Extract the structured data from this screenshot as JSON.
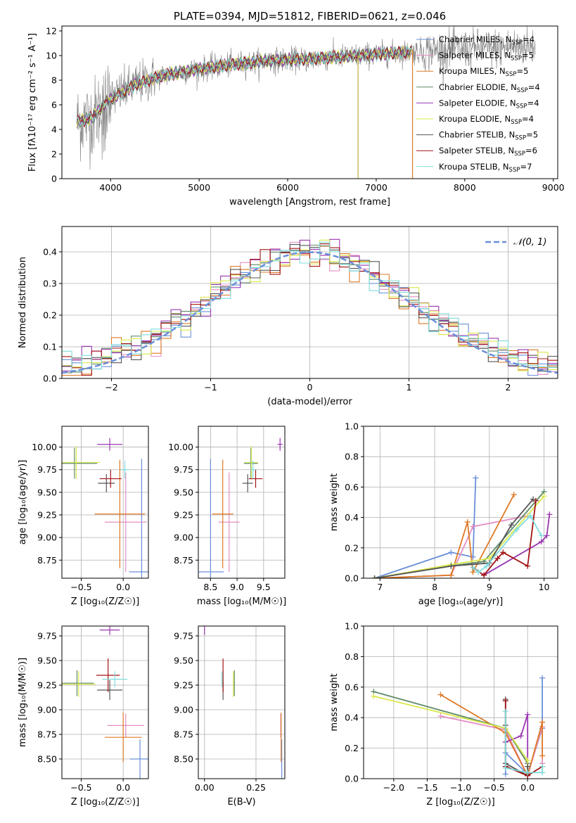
{
  "colors": {
    "Chabrier MILES": "#6a8fd9",
    "Salpeter MILES": "#e48fc3",
    "Kroupa MILES": "#de7a26",
    "Chabrier ELODIE": "#5e8a68",
    "Salpeter ELODIE": "#9a36b0",
    "Kroupa ELODIE": "#d9e84c",
    "Chabrier STELIB": "#555555",
    "Salpeter STELIB": "#a31414",
    "Kroupa STELIB": "#7fdcdc",
    "normal_curve": "#6a8fd9",
    "observed_spectrum": "#808080"
  },
  "chart_data": [
    {
      "id": "spectrum",
      "type": "line",
      "title": "PLATE=0394, MJD=51812, FIBERID=0621, z=0.046",
      "xlabel": "wavelength [Angstrom, rest frame]",
      "ylabel": "Flux [fλ10⁻¹⁷ erg cm⁻² s⁻¹ A⁻¹]",
      "xlim": [
        3450,
        9050
      ],
      "ylim": [
        0,
        12.4
      ],
      "xticks": [
        4000,
        5000,
        6000,
        7000,
        8000,
        9000
      ],
      "yticks": [
        0,
        2,
        4,
        6,
        8,
        10,
        12
      ],
      "grid": false,
      "legend_position": "right",
      "legend": [
        {
          "label": "Chabrier MILES, N",
          "sub": "SSP",
          "eq": "=4"
        },
        {
          "label": "Salpeter MILES, N",
          "sub": "SSP",
          "eq": "=5"
        },
        {
          "label": "Kroupa MILES, N",
          "sub": "SSP",
          "eq": "=5"
        },
        {
          "label": "Chabrier ELODIE, N",
          "sub": "SSP",
          "eq": "=4"
        },
        {
          "label": "Salpeter ELODIE, N",
          "sub": "SSP",
          "eq": "=4"
        },
        {
          "label": "Kroupa ELODIE, N",
          "sub": "SSP",
          "eq": "=4"
        },
        {
          "label": "Chabrier STELIB, N",
          "sub": "SSP",
          "eq": "=5"
        },
        {
          "label": "Salpeter STELIB, N",
          "sub": "SSP",
          "eq": "=6"
        },
        {
          "label": "Kroupa STELIB, N",
          "sub": "SSP",
          "eq": "=7"
        }
      ],
      "continuum": {
        "x": [
          3620,
          3800,
          3950,
          4100,
          4300,
          4600,
          5000,
          5400,
          5800,
          6200,
          6600,
          7000,
          7400,
          7800,
          8200,
          8600,
          8800
        ],
        "y": [
          4.6,
          5.0,
          6.2,
          6.9,
          7.7,
          8.4,
          8.9,
          9.3,
          9.6,
          9.7,
          9.9,
          10.1,
          10.3,
          10.45,
          10.55,
          10.7,
          10.8
        ]
      }
    },
    {
      "id": "residuals",
      "type": "line",
      "xlabel": "(data-model)/error",
      "ylabel": "Normed distribution",
      "xlim": [
        -2.5,
        2.5
      ],
      "ylim": [
        0,
        0.48
      ],
      "xticks": [
        -2,
        -1,
        0,
        1,
        2
      ],
      "yticks": [
        0.0,
        0.1,
        0.2,
        0.3,
        0.4
      ],
      "grid": true,
      "legend_position": "top-right",
      "legend": "𝒩(0, 1)",
      "bin_width": 0.1
    },
    {
      "id": "age-vs-Z",
      "type": "scatter",
      "xlabel": "Z [log₁₀(Z/Z☉)]",
      "ylabel": "age  [log₁₀(age/yr)]",
      "xlim": [
        -0.73,
        0.3
      ],
      "ylim": [
        8.55,
        10.23
      ],
      "xticks": [
        -0.5,
        0.0
      ],
      "yticks": [
        8.75,
        9.0,
        9.25,
        9.5,
        9.75,
        10.0
      ],
      "grid": true,
      "points": [
        {
          "model": "Chabrier MILES",
          "x": 0.22,
          "xerr": 0.15,
          "y": 8.62,
          "yerr": 1.25
        },
        {
          "model": "Salpeter MILES",
          "x": 0.03,
          "xerr": 0.25,
          "y": 9.17,
          "yerr": 0.55
        },
        {
          "model": "Kroupa MILES",
          "x": -0.04,
          "xerr": 0.3,
          "y": 9.26,
          "yerr": 0.6
        },
        {
          "model": "Chabrier ELODIE",
          "x": -0.58,
          "xerr": 0.27,
          "y": 9.82,
          "yerr": 0.17
        },
        {
          "model": "Salpeter ELODIE",
          "x": -0.16,
          "xerr": 0.15,
          "y": 10.03,
          "yerr": 0.07
        },
        {
          "model": "Kroupa ELODIE",
          "x": -0.56,
          "xerr": 0.28,
          "y": 9.83,
          "yerr": 0.18
        },
        {
          "model": "Chabrier STELIB",
          "x": -0.2,
          "xerr": 0.1,
          "y": 9.6,
          "yerr": 0.1
        },
        {
          "model": "Salpeter STELIB",
          "x": -0.15,
          "xerr": 0.13,
          "y": 9.65,
          "yerr": 0.1
        },
        {
          "model": "Kroupa STELIB",
          "x": 0.02,
          "xerr": 0.05,
          "y": 9.75,
          "yerr": 0.1
        }
      ]
    },
    {
      "id": "age-vs-mass",
      "type": "scatter",
      "xlabel": "mass [log₁₀(M/M☉)]",
      "ylabel": "",
      "xlim": [
        8.27,
        9.9
      ],
      "ylim": [
        8.55,
        10.23
      ],
      "xticks": [
        8.5,
        9.0,
        9.5
      ],
      "yticks": [
        8.75,
        9.0,
        9.25,
        9.5,
        9.75,
        10.0
      ],
      "grid": true,
      "points": [
        {
          "model": "Chabrier MILES",
          "x": 8.5,
          "xerr": 0.25,
          "y": 8.62,
          "yerr": 1.25
        },
        {
          "model": "Salpeter MILES",
          "x": 8.85,
          "xerr": 0.2,
          "y": 9.17,
          "yerr": 0.55
        },
        {
          "model": "Kroupa MILES",
          "x": 8.73,
          "xerr": 0.2,
          "y": 9.26,
          "yerr": 0.6
        },
        {
          "model": "Chabrier ELODIE",
          "x": 9.26,
          "xerr": 0.13,
          "y": 9.82,
          "yerr": 0.17
        },
        {
          "model": "Salpeter ELODIE",
          "x": 9.81,
          "xerr": 0.05,
          "y": 10.03,
          "yerr": 0.07
        },
        {
          "model": "Kroupa ELODIE",
          "x": 9.27,
          "xerr": 0.13,
          "y": 9.83,
          "yerr": 0.18
        },
        {
          "model": "Chabrier STELIB",
          "x": 9.2,
          "xerr": 0.1,
          "y": 9.6,
          "yerr": 0.1
        },
        {
          "model": "Salpeter STELIB",
          "x": 9.35,
          "xerr": 0.13,
          "y": 9.65,
          "yerr": 0.1
        },
        {
          "model": "Kroupa STELIB",
          "x": 9.3,
          "xerr": 0.05,
          "y": 9.75,
          "yerr": 0.1
        }
      ]
    },
    {
      "id": "massweight-vs-age",
      "type": "line",
      "xlabel": "age  [log₁₀(age/yr)]",
      "ylabel": "mass weight",
      "xlim": [
        6.7,
        10.25
      ],
      "ylim": [
        0,
        1.0
      ],
      "xticks": [
        7,
        8,
        9,
        10
      ],
      "yticks": [
        0.0,
        0.2,
        0.4,
        0.6,
        0.8,
        1.0
      ],
      "grid": true,
      "series": [
        {
          "model": "Chabrier MILES",
          "x": [
            6.9,
            8.3,
            8.7,
            8.75
          ],
          "y": [
            0.0,
            0.17,
            0.14,
            0.66
          ]
        },
        {
          "model": "Salpeter MILES",
          "x": [
            6.9,
            8.3,
            8.7,
            9.7
          ],
          "y": [
            0.0,
            0.02,
            0.34,
            0.41
          ]
        },
        {
          "model": "Kroupa MILES",
          "x": [
            6.9,
            8.3,
            8.6,
            8.7,
            9.45
          ],
          "y": [
            0.0,
            0.02,
            0.37,
            0.04,
            0.55
          ]
        },
        {
          "model": "Chabrier ELODIE",
          "x": [
            6.9,
            8.3,
            8.9,
            10.0
          ],
          "y": [
            0.0,
            0.08,
            0.11,
            0.57
          ]
        },
        {
          "model": "Salpeter ELODIE",
          "x": [
            8.9,
            9.95,
            10.05,
            10.1
          ],
          "y": [
            0.02,
            0.24,
            0.28,
            0.42
          ]
        },
        {
          "model": "Kroupa ELODIE",
          "x": [
            6.9,
            8.3,
            9.0,
            10.0
          ],
          "y": [
            0.0,
            0.09,
            0.13,
            0.54
          ]
        },
        {
          "model": "Chabrier STELIB",
          "x": [
            6.9,
            8.3,
            9.0,
            9.4,
            9.8
          ],
          "y": [
            0.0,
            0.08,
            0.1,
            0.35,
            0.52
          ]
        },
        {
          "model": "Salpeter STELIB",
          "x": [
            8.7,
            8.9,
            9.15,
            9.25,
            9.7,
            9.85
          ],
          "y": [
            0.07,
            0.02,
            0.13,
            0.17,
            0.08,
            0.51
          ]
        },
        {
          "model": "Kroupa STELIB",
          "x": [
            8.7,
            8.8,
            8.95,
            9.5,
            9.75,
            9.95
          ],
          "y": [
            0.07,
            0.04,
            0.08,
            0.32,
            0.41,
            0.28
          ]
        }
      ]
    },
    {
      "id": "mass-vs-Z",
      "type": "scatter",
      "xlabel": "Z [log₁₀(Z/Z☉)]",
      "ylabel": "mass [log₁₀(M/M☉)]",
      "xlim": [
        -0.73,
        0.3
      ],
      "ylim": [
        8.3,
        9.85
      ],
      "xticks": [
        -0.5,
        0.0
      ],
      "yticks": [
        8.5,
        8.75,
        9.0,
        9.25,
        9.5,
        9.75
      ],
      "grid": true,
      "points": [
        {
          "model": "Chabrier MILES",
          "x": 0.2,
          "xerr": 0.12,
          "y": 8.5,
          "yerr": 0.2
        },
        {
          "model": "Salpeter MILES",
          "x": 0.03,
          "xerr": 0.22,
          "y": 8.84,
          "yerr": 0.12
        },
        {
          "model": "Kroupa MILES",
          "x": 0.0,
          "xerr": 0.22,
          "y": 8.72,
          "yerr": 0.25
        },
        {
          "model": "Chabrier ELODIE",
          "x": -0.55,
          "xerr": 0.2,
          "y": 9.27,
          "yerr": 0.13
        },
        {
          "model": "Salpeter ELODIE",
          "x": -0.16,
          "xerr": 0.12,
          "y": 9.81,
          "yerr": 0.05
        },
        {
          "model": "Kroupa ELODIE",
          "x": -0.53,
          "xerr": 0.2,
          "y": 9.26,
          "yerr": 0.13
        },
        {
          "model": "Chabrier STELIB",
          "x": -0.16,
          "xerr": 0.15,
          "y": 9.2,
          "yerr": 0.1
        },
        {
          "model": "Salpeter STELIB",
          "x": -0.18,
          "xerr": 0.14,
          "y": 9.35,
          "yerr": 0.17
        },
        {
          "model": "Kroupa STELIB",
          "x": -0.1,
          "xerr": 0.15,
          "y": 9.31,
          "yerr": 0.08
        }
      ]
    },
    {
      "id": "mass-vs-ebv",
      "type": "scatter",
      "xlabel": "E(B-V)",
      "ylabel": "",
      "xlim": [
        -0.03,
        0.39
      ],
      "ylim": [
        8.3,
        9.85
      ],
      "xticks": [
        0.0,
        0.25
      ],
      "yticks": [
        8.5,
        8.75,
        9.0,
        9.25,
        9.5,
        9.75
      ],
      "grid": true,
      "points": [
        {
          "model": "Chabrier MILES",
          "x": 0.375,
          "xerr": 0.002,
          "y": 8.5,
          "yerr": 0.2
        },
        {
          "model": "Salpeter MILES",
          "x": 0.37,
          "xerr": 0.002,
          "y": 8.84,
          "yerr": 0.12
        },
        {
          "model": "Kroupa MILES",
          "x": 0.372,
          "xerr": 0.002,
          "y": 8.72,
          "yerr": 0.25
        },
        {
          "model": "Chabrier ELODIE",
          "x": 0.145,
          "xerr": 0.002,
          "y": 9.27,
          "yerr": 0.13
        },
        {
          "model": "Salpeter ELODIE",
          "x": 0.0,
          "xerr": 0.002,
          "y": 9.81,
          "yerr": 0.05
        },
        {
          "model": "Kroupa ELODIE",
          "x": 0.14,
          "xerr": 0.002,
          "y": 9.26,
          "yerr": 0.13
        },
        {
          "model": "Chabrier STELIB",
          "x": 0.09,
          "xerr": 0.002,
          "y": 9.2,
          "yerr": 0.1
        },
        {
          "model": "Salpeter STELIB",
          "x": 0.09,
          "xerr": 0.002,
          "y": 9.35,
          "yerr": 0.17
        },
        {
          "model": "Kroupa STELIB",
          "x": 0.085,
          "xerr": 0.002,
          "y": 9.31,
          "yerr": 0.08
        }
      ]
    },
    {
      "id": "massweight-vs-Z",
      "type": "line",
      "xlabel": "Z [log₁₀(Z/Z☉)]",
      "ylabel": "mass weight",
      "xlim": [
        -2.45,
        0.45
      ],
      "ylim": [
        0,
        1.0
      ],
      "xticks": [
        -2.0,
        -1.5,
        -1.0,
        -0.5,
        0.0
      ],
      "yticks": [
        0.0,
        0.2,
        0.4,
        0.6,
        0.8,
        1.0
      ],
      "grid": true,
      "series": [
        {
          "model": "Chabrier MILES",
          "x": [
            -0.33,
            -0.33,
            0.0,
            0.22,
            0.22
          ],
          "y": [
            0.03,
            0.17,
            0.03,
            0.33,
            0.66
          ]
        },
        {
          "model": "Salpeter MILES",
          "x": [
            -1.3,
            -0.33,
            0.0,
            0.22,
            0.22
          ],
          "y": [
            0.41,
            0.32,
            0.02,
            0.34,
            0.1
          ]
        },
        {
          "model": "Kroupa MILES",
          "x": [
            -1.3,
            -0.33,
            0.0,
            0.22,
            0.22
          ],
          "y": [
            0.55,
            0.3,
            0.02,
            0.37,
            0.15
          ]
        },
        {
          "model": "Chabrier ELODIE",
          "x": [
            -2.3,
            -0.33,
            0.0,
            0.0
          ],
          "y": [
            0.57,
            0.33,
            0.1,
            0.03
          ]
        },
        {
          "model": "Salpeter ELODIE",
          "x": [
            -0.33,
            -0.1,
            0.0,
            0.0
          ],
          "y": [
            0.24,
            0.28,
            0.42,
            0.02
          ]
        },
        {
          "model": "Kroupa ELODIE",
          "x": [
            -2.3,
            -0.33,
            0.0,
            0.0
          ],
          "y": [
            0.54,
            0.33,
            0.12,
            0.04
          ]
        },
        {
          "model": "Chabrier STELIB",
          "x": [
            -0.33,
            -0.33,
            -0.33,
            0.0,
            0.0
          ],
          "y": [
            0.52,
            0.35,
            0.1,
            0.02,
            0.08
          ]
        },
        {
          "model": "Salpeter STELIB",
          "x": [
            -0.33,
            -0.33,
            0.0,
            0.22
          ],
          "y": [
            0.51,
            0.08,
            0.02,
            0.08
          ]
        },
        {
          "model": "Kroupa STELIB",
          "x": [
            -0.33,
            -0.33,
            0.0,
            0.22,
            0.22
          ],
          "y": [
            0.44,
            0.07,
            0.04,
            0.04,
            0.08
          ]
        }
      ]
    }
  ]
}
